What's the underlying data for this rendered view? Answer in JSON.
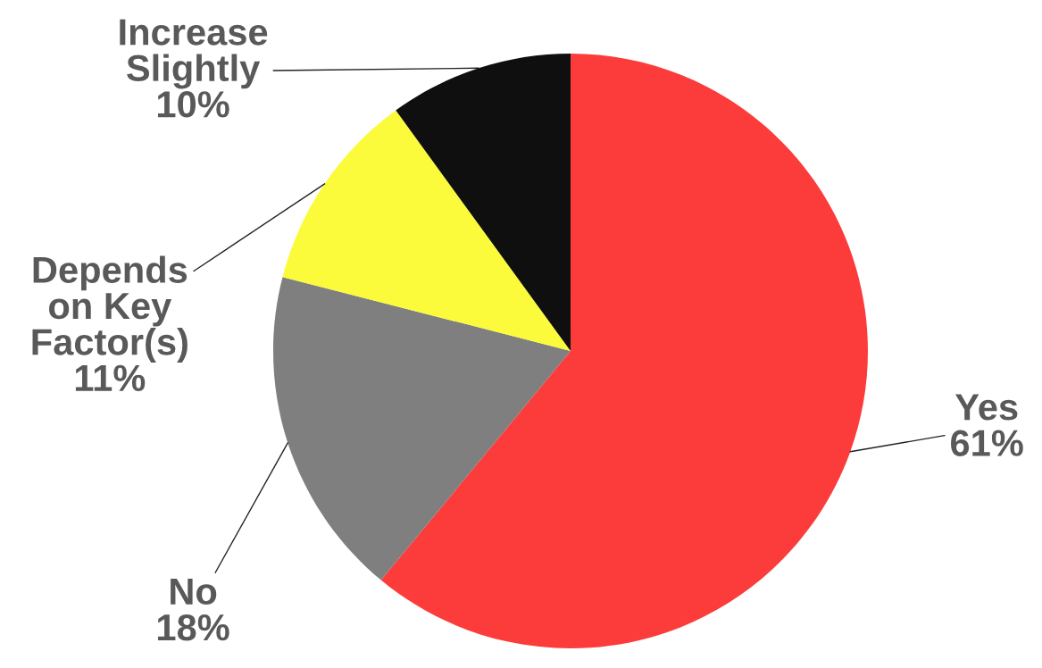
{
  "chart_data": {
    "type": "pie",
    "categories": [
      "Yes",
      "No",
      "Depends\non Key\nFactor(s)",
      "Increase\nSlightly"
    ],
    "values": [
      61,
      18,
      11,
      10
    ],
    "colors": [
      "#fc3b3b",
      "#7f7f7f",
      "#fbfb3c",
      "#0f0f0f"
    ],
    "value_labels": [
      "61%",
      "18%",
      "11%",
      "10%"
    ]
  }
}
